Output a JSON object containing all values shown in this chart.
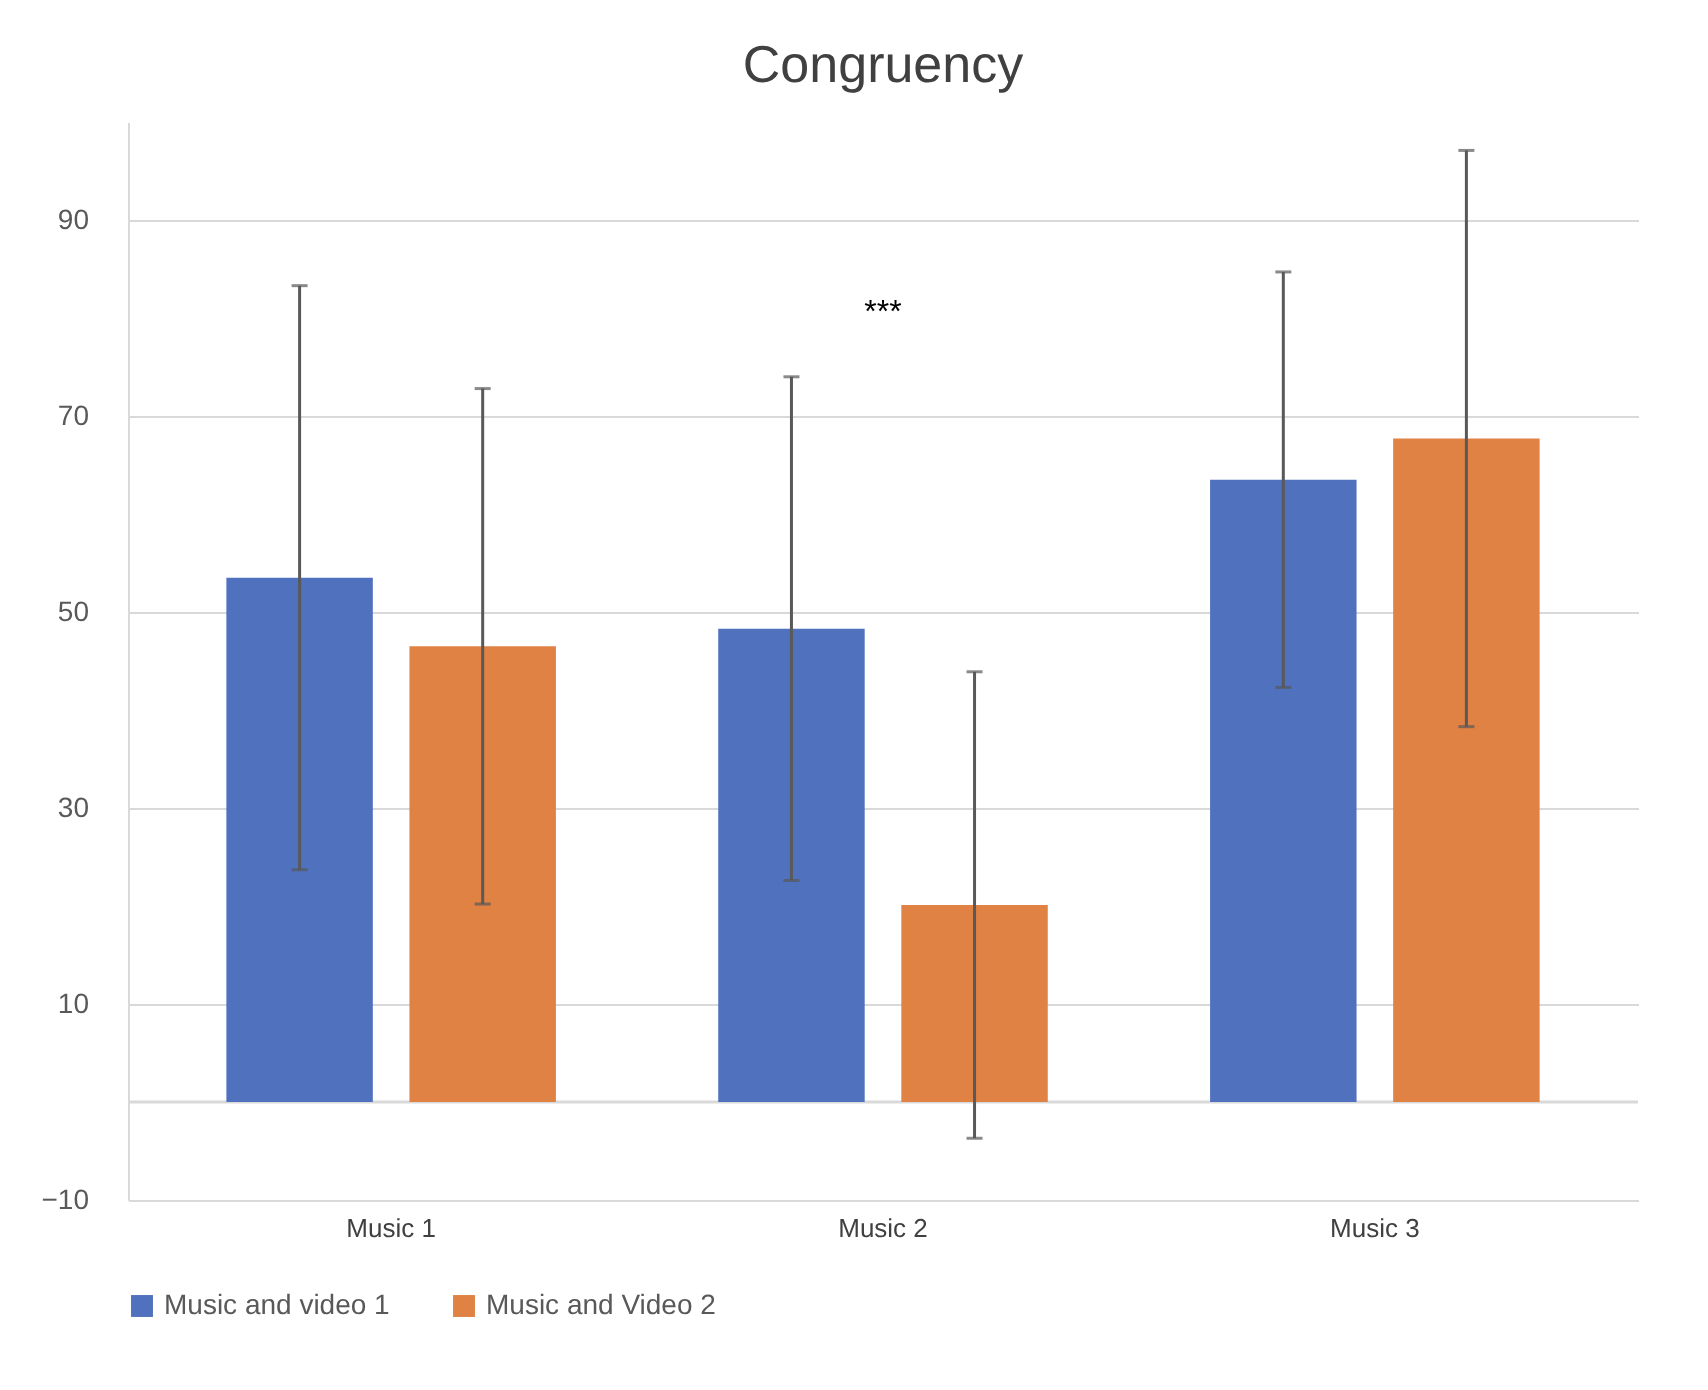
{
  "chart_data": {
    "type": "bar",
    "title": "Congruency",
    "categories": [
      "Music 1",
      "Music 2",
      "Music 3"
    ],
    "series": [
      {
        "name": "Music and video 1",
        "color": "#4f71be",
        "values": [
          53.5,
          48.3,
          63.5
        ],
        "errors": [
          29.8,
          25.7,
          21.2
        ]
      },
      {
        "name": "Music and Video 2",
        "color": "#df8244",
        "values": [
          46.5,
          20.1,
          67.7
        ],
        "errors": [
          26.3,
          23.8,
          29.4
        ]
      }
    ],
    "ylim": [
      -10,
      100
    ],
    "yticks": [
      -10,
      10,
      30,
      50,
      70,
      90
    ],
    "grid": "y",
    "legend": "bottom",
    "ref_lines": [
      {
        "axis": "y",
        "value": 0,
        "color": "#d9d9d9"
      }
    ],
    "annotations": [
      "***"
    ]
  }
}
